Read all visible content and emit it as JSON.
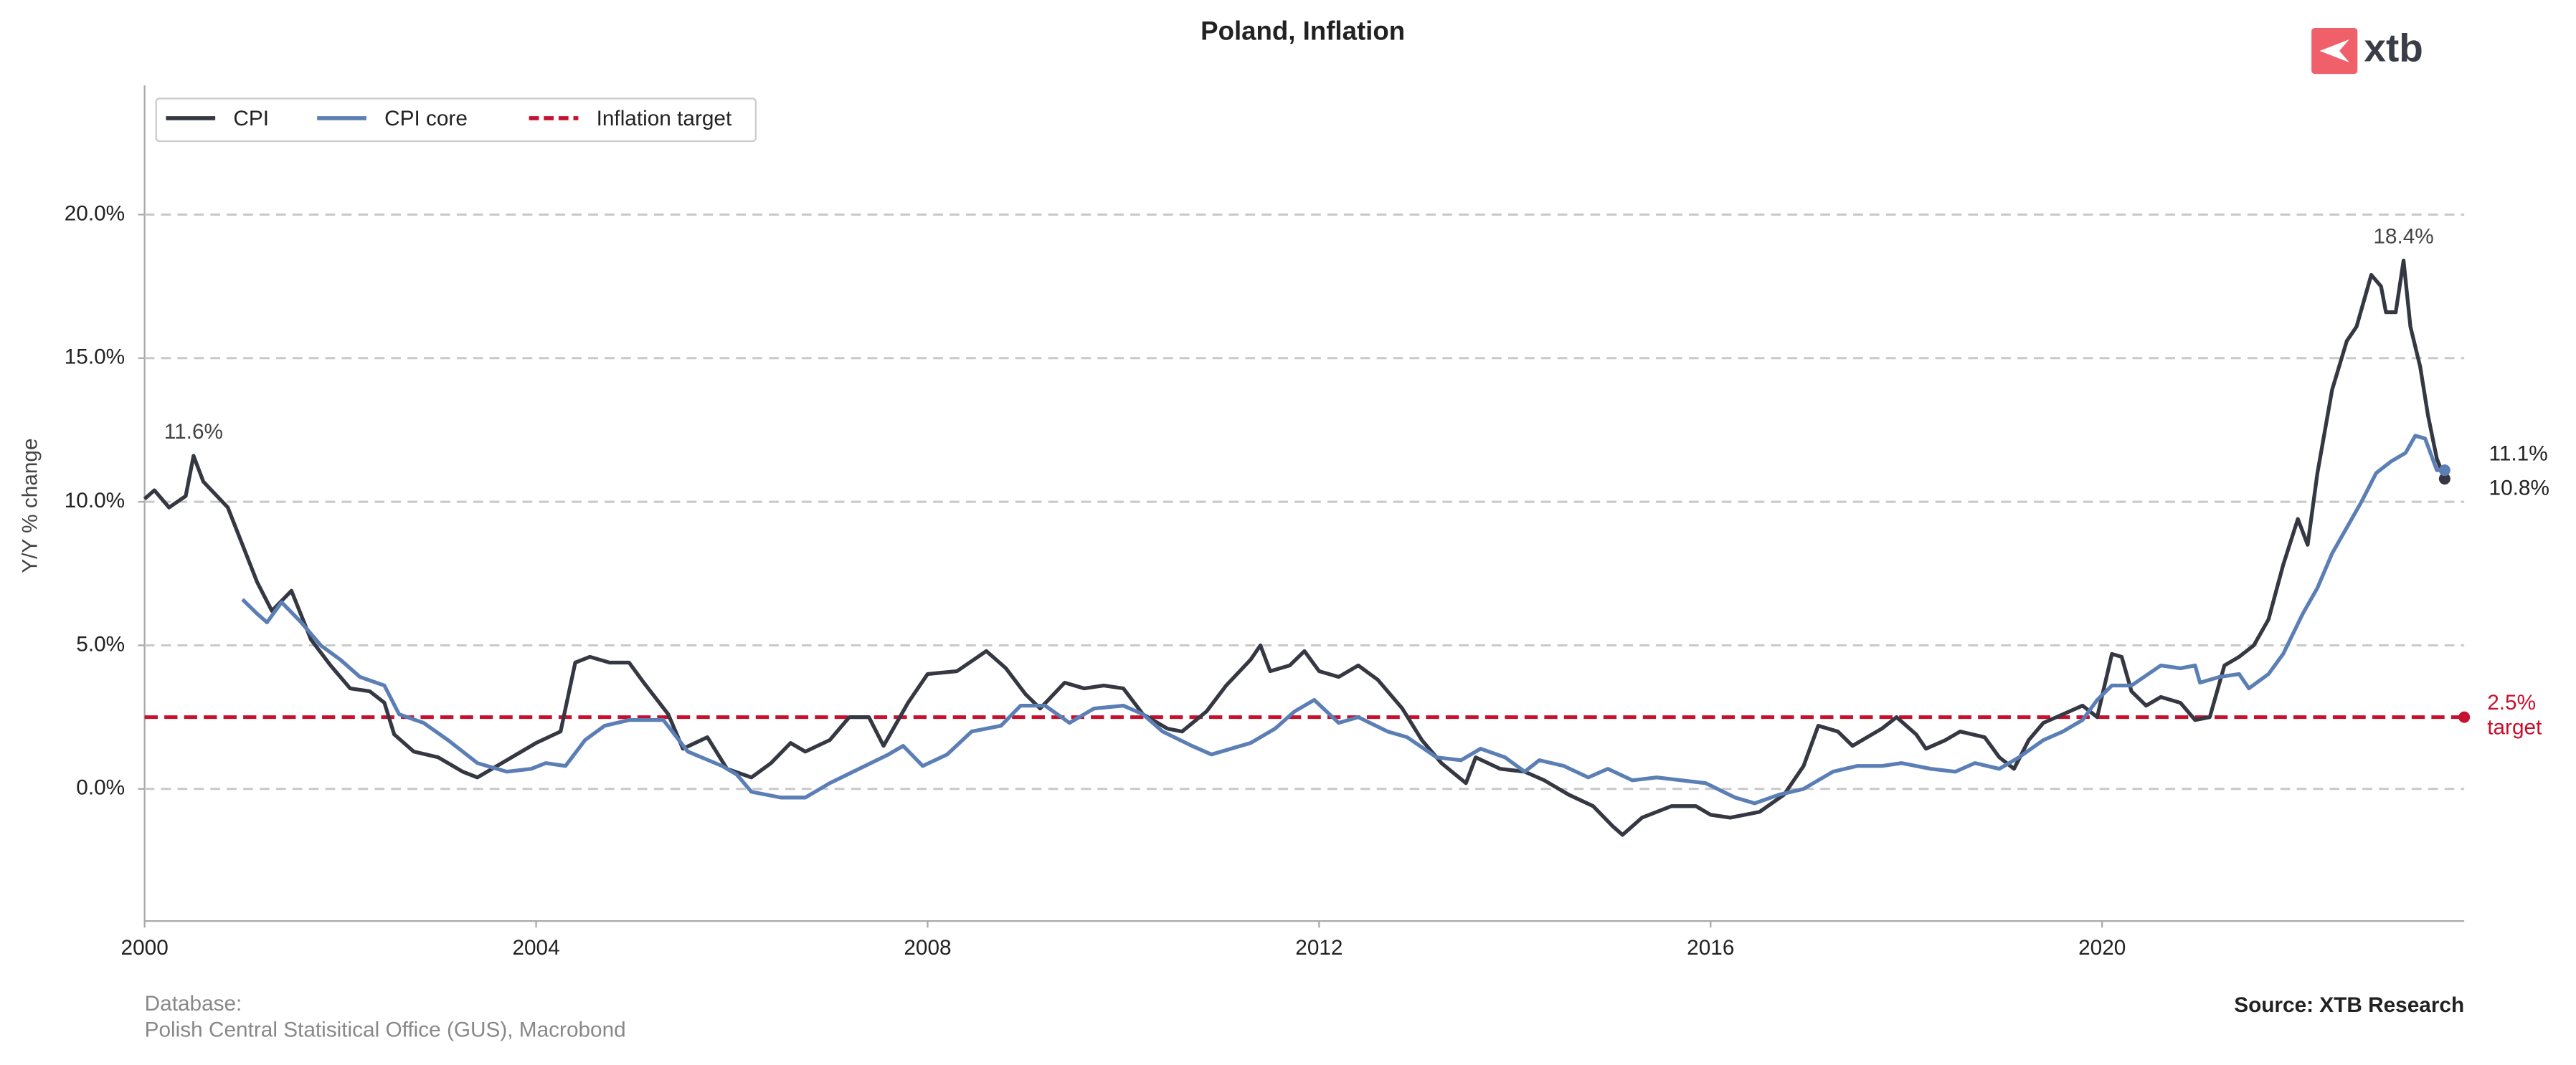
{
  "chart_data": {
    "type": "line",
    "title": "Poland, Inflation",
    "logo": "xtb",
    "ylabel": "Y/Y % change",
    "footer_heading": "Database:",
    "footer_source": "Polish Central Statisitical Office (GUS), Macrobond",
    "credit": "Source: XTB Research",
    "xlim": [
      2000,
      2023.7
    ],
    "ylim": [
      -4.6,
      24.5
    ],
    "xticks": [
      2000,
      2004,
      2008,
      2012,
      2016,
      2020
    ],
    "yticks": [
      {
        "value": 0,
        "label": "0.0%"
      },
      {
        "value": 5,
        "label": "5.0%"
      },
      {
        "value": 10,
        "label": "10.0%"
      },
      {
        "value": 15,
        "label": "15.0%"
      },
      {
        "value": 20,
        "label": "20.0%"
      }
    ],
    "grid": true,
    "legend": "upper left",
    "series": [
      {
        "name": "CPI",
        "color": "#353842",
        "end_label": "10.8%",
        "x": [
          2000.0,
          2000.1,
          2000.25,
          2000.42,
          2000.5,
          2000.6,
          2000.85,
          2001.0,
          2001.15,
          2001.3,
          2001.5,
          2001.7,
          2001.9,
          2002.1,
          2002.3,
          2002.45,
          2002.55,
          2002.75,
          2003.0,
          2003.25,
          2003.4,
          2003.6,
          2003.8,
          2004.0,
          2004.25,
          2004.4,
          2004.55,
          2004.75,
          2004.95,
          2005.1,
          2005.35,
          2005.5,
          2005.75,
          2005.95,
          2006.2,
          2006.4,
          2006.6,
          2006.75,
          2007.0,
          2007.2,
          2007.4,
          2007.55,
          2007.8,
          2008.0,
          2008.3,
          2008.6,
          2008.8,
          2009.0,
          2009.15,
          2009.4,
          2009.6,
          2009.8,
          2010.0,
          2010.2,
          2010.45,
          2010.6,
          2010.85,
          2011.05,
          2011.3,
          2011.4,
          2011.5,
          2011.7,
          2011.85,
          2012.0,
          2012.2,
          2012.4,
          2012.6,
          2012.85,
          2013.05,
          2013.25,
          2013.5,
          2013.6,
          2013.85,
          2014.1,
          2014.3,
          2014.55,
          2014.8,
          2015.0,
          2015.1,
          2015.3,
          2015.6,
          2015.85,
          2016.0,
          2016.2,
          2016.5,
          2016.75,
          2016.95,
          2017.1,
          2017.3,
          2017.45,
          2017.6,
          2017.75,
          2017.9,
          2018.1,
          2018.2,
          2018.4,
          2018.55,
          2018.8,
          2018.95,
          2019.1,
          2019.25,
          2019.4,
          2019.6,
          2019.8,
          2019.95,
          2020.1,
          2020.2,
          2020.3,
          2020.45,
          2020.6,
          2020.8,
          2020.95,
          2021.1,
          2021.25,
          2021.4,
          2021.55,
          2021.7,
          2021.85,
          2022.0,
          2022.1,
          2022.2,
          2022.35,
          2022.5,
          2022.6,
          2022.75,
          2022.85,
          2022.9,
          2023.0,
          2023.08,
          2023.15,
          2023.25,
          2023.33,
          2023.42,
          2023.5
        ],
        "values": [
          10.1,
          10.4,
          9.8,
          10.2,
          11.6,
          10.7,
          9.8,
          8.5,
          7.2,
          6.2,
          6.9,
          5.2,
          4.3,
          3.5,
          3.4,
          3.0,
          1.9,
          1.3,
          1.1,
          0.6,
          0.4,
          0.8,
          1.2,
          1.6,
          2.0,
          4.4,
          4.6,
          4.4,
          4.4,
          3.7,
          2.6,
          1.4,
          1.8,
          0.7,
          0.4,
          0.9,
          1.6,
          1.3,
          1.7,
          2.5,
          2.5,
          1.5,
          3.0,
          4.0,
          4.1,
          4.8,
          4.2,
          3.3,
          2.8,
          3.7,
          3.5,
          3.6,
          3.5,
          2.6,
          2.1,
          2.0,
          2.7,
          3.6,
          4.5,
          5.0,
          4.1,
          4.3,
          4.8,
          4.1,
          3.9,
          4.3,
          3.8,
          2.8,
          1.7,
          0.9,
          0.2,
          1.1,
          0.7,
          0.6,
          0.3,
          -0.2,
          -0.6,
          -1.3,
          -1.6,
          -1.0,
          -0.6,
          -0.6,
          -0.9,
          -1.0,
          -0.8,
          -0.2,
          0.8,
          2.2,
          2.0,
          1.5,
          1.8,
          2.1,
          2.5,
          1.9,
          1.4,
          1.7,
          2.0,
          1.8,
          1.1,
          0.7,
          1.7,
          2.3,
          2.6,
          2.9,
          2.5,
          4.7,
          4.6,
          3.4,
          2.9,
          3.2,
          3.0,
          2.4,
          2.5,
          4.3,
          4.6,
          5.0,
          5.9,
          7.8,
          9.4,
          8.5,
          11.0,
          13.9,
          15.6,
          16.1,
          17.9,
          17.5,
          16.6,
          16.6,
          18.4,
          16.1,
          14.7,
          13.0,
          11.5,
          10.8
        ]
      },
      {
        "name": "CPI core",
        "color": "#5b7fb5",
        "end_label": "11.1%",
        "x": [
          2001.0,
          2001.15,
          2001.25,
          2001.4,
          2001.6,
          2001.8,
          2002.0,
          2002.2,
          2002.45,
          2002.6,
          2002.85,
          2003.1,
          2003.4,
          2003.7,
          2003.95,
          2004.1,
          2004.3,
          2004.5,
          2004.7,
          2004.95,
          2005.3,
          2005.55,
          2005.9,
          2006.05,
          2006.2,
          2006.5,
          2006.75,
          2007.0,
          2007.3,
          2007.6,
          2007.75,
          2007.95,
          2008.2,
          2008.45,
          2008.75,
          2008.95,
          2009.2,
          2009.45,
          2009.7,
          2010.0,
          2010.2,
          2010.4,
          2010.7,
          2010.9,
          2011.3,
          2011.55,
          2011.75,
          2011.95,
          2012.2,
          2012.4,
          2012.7,
          2012.9,
          2013.2,
          2013.45,
          2013.65,
          2013.9,
          2014.1,
          2014.25,
          2014.5,
          2014.75,
          2014.95,
          2015.2,
          2015.45,
          2015.7,
          2015.95,
          2016.25,
          2016.45,
          2016.7,
          2016.95,
          2017.25,
          2017.5,
          2017.75,
          2017.95,
          2018.25,
          2018.5,
          2018.7,
          2018.95,
          2019.15,
          2019.4,
          2019.6,
          2019.8,
          2019.95,
          2020.1,
          2020.3,
          2020.6,
          2020.8,
          2020.95,
          2021.0,
          2021.2,
          2021.4,
          2021.5,
          2021.7,
          2021.85,
          2022.05,
          2022.2,
          2022.35,
          2022.5,
          2022.65,
          2022.8,
          2022.95,
          2023.1,
          2023.2,
          2023.3,
          2023.42,
          2023.5
        ],
        "values": [
          6.6,
          6.1,
          5.8,
          6.5,
          5.8,
          5.0,
          4.5,
          3.9,
          3.6,
          2.6,
          2.3,
          1.7,
          0.9,
          0.6,
          0.7,
          0.9,
          0.8,
          1.7,
          2.2,
          2.4,
          2.4,
          1.3,
          0.8,
          0.5,
          -0.1,
          -0.3,
          -0.3,
          0.2,
          0.7,
          1.2,
          1.5,
          0.8,
          1.2,
          2.0,
          2.2,
          2.9,
          2.9,
          2.3,
          2.8,
          2.9,
          2.6,
          2.0,
          1.5,
          1.2,
          1.6,
          2.1,
          2.7,
          3.1,
          2.3,
          2.5,
          2.0,
          1.8,
          1.1,
          1.0,
          1.4,
          1.1,
          0.6,
          1.0,
          0.8,
          0.4,
          0.7,
          0.3,
          0.4,
          0.3,
          0.2,
          -0.3,
          -0.5,
          -0.2,
          0.0,
          0.6,
          0.8,
          0.8,
          0.9,
          0.7,
          0.6,
          0.9,
          0.7,
          1.1,
          1.7,
          2.0,
          2.4,
          3.1,
          3.6,
          3.6,
          4.3,
          4.2,
          4.3,
          3.7,
          3.9,
          4.0,
          3.5,
          4.0,
          4.7,
          6.1,
          7.0,
          8.2,
          9.1,
          10.0,
          11.0,
          11.4,
          11.7,
          12.3,
          12.2,
          11.1,
          11.1
        ]
      }
    ],
    "target": {
      "name": "Inflation target",
      "color": "#c8102e",
      "value": 2.5,
      "value_label": "2.5%",
      "label": "target"
    },
    "annotations": [
      {
        "label": "11.6%",
        "x": 2000.5,
        "value": 11.6
      },
      {
        "label": "18.4%",
        "x": 2023.08,
        "value": 18.4
      }
    ]
  }
}
